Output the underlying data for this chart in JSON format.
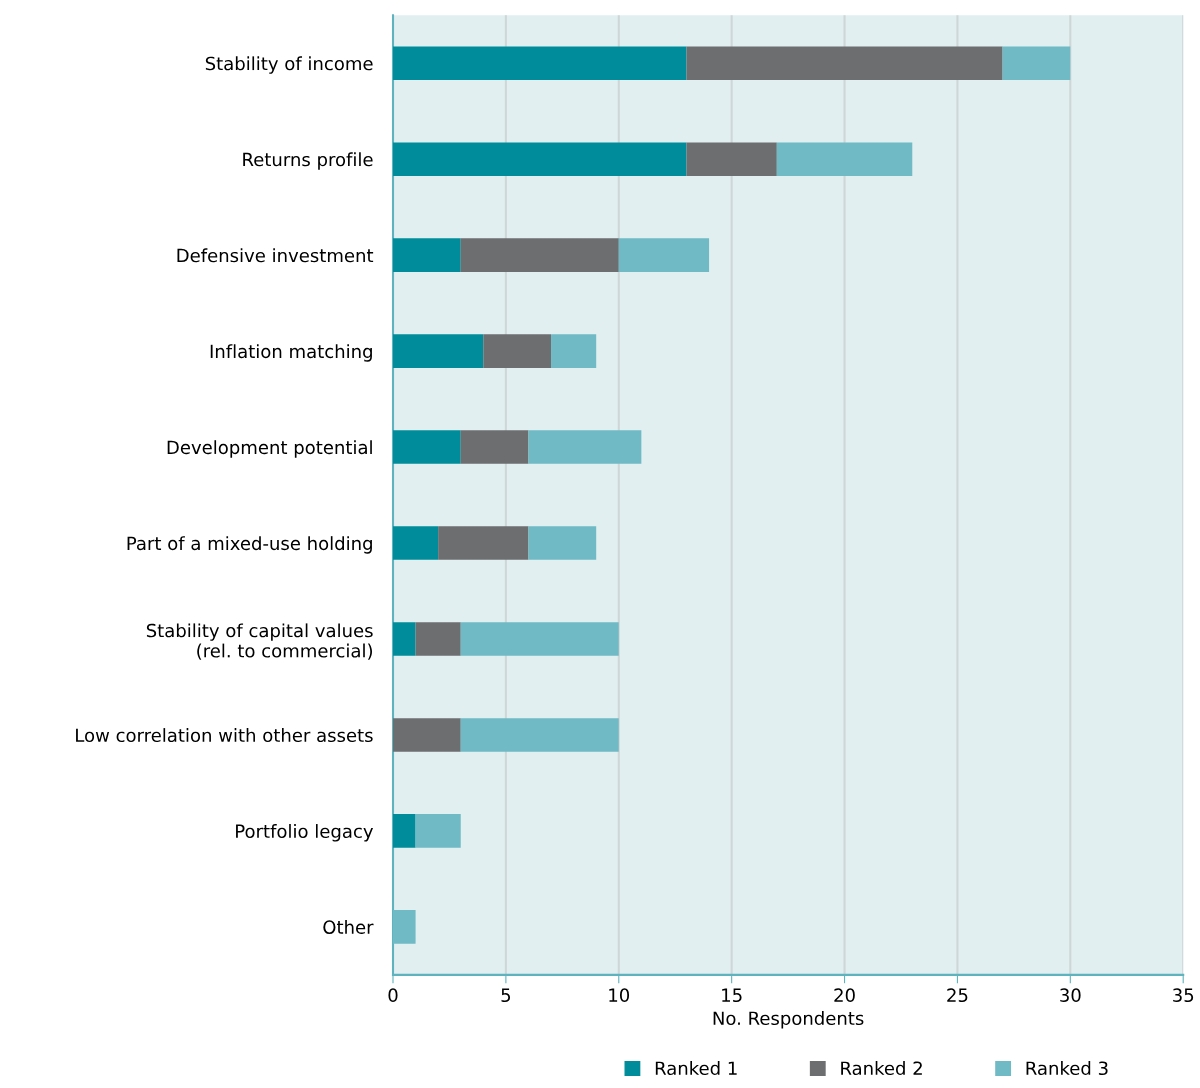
{
  "chart_data": {
    "type": "bar",
    "orientation": "horizontal",
    "stacked": true,
    "xlabel": "No. Respondents",
    "categories": [
      "Stability of income",
      "Returns profile",
      "Defensive investment",
      "Inflation matching",
      "Development potential",
      "Part of a mixed-use holding",
      "Stability of capital values\n(rel. to commercial)",
      "Low correlation with other assets",
      "Portfolio legacy",
      "Other"
    ],
    "series": [
      {
        "name": "Ranked 1",
        "color": "#008c9a",
        "values": [
          13,
          13,
          3,
          4,
          3,
          2,
          1,
          0,
          1,
          0
        ]
      },
      {
        "name": "Ranked 2",
        "color": "#6d6e70",
        "values": [
          14,
          4,
          7,
          3,
          3,
          4,
          2,
          3,
          0,
          0
        ]
      },
      {
        "name": "Ranked 3",
        "color": "#6fbac5",
        "values": [
          3,
          6,
          4,
          2,
          5,
          3,
          7,
          7,
          2,
          1
        ]
      }
    ],
    "xlim": [
      0,
      35
    ],
    "xticks": [
      0,
      5,
      10,
      15,
      20,
      25,
      30,
      35
    ],
    "grid": "x",
    "legend": "bottom"
  }
}
